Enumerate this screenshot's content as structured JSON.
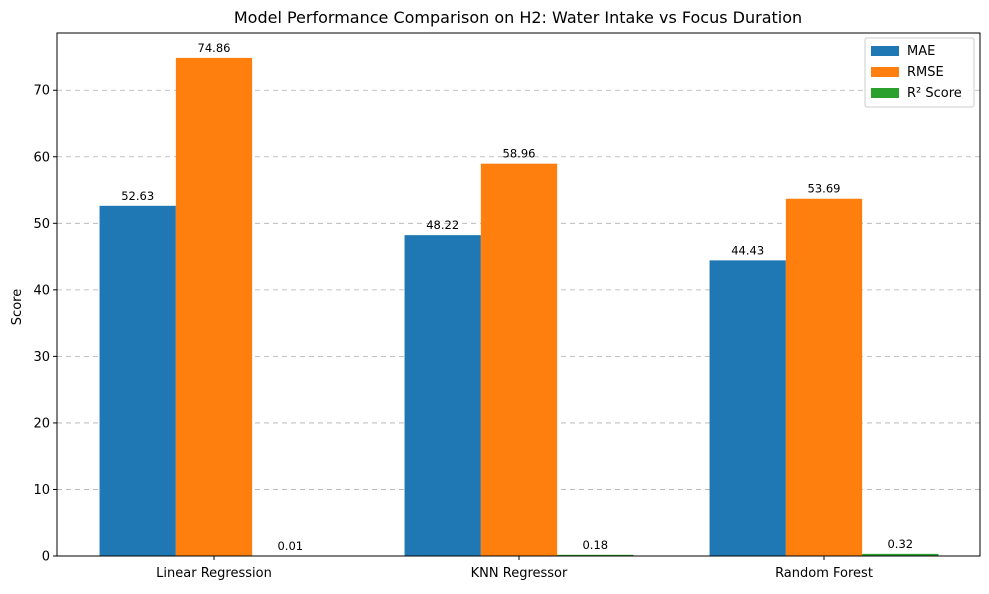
{
  "chart_data": {
    "type": "bar",
    "title": "Model Performance Comparison on H2: Water Intake vs Focus Duration",
    "xlabel": "",
    "ylabel": "Score",
    "categories": [
      "Linear Regression",
      "KNN Regressor",
      "Random Forest"
    ],
    "series": [
      {
        "name": "MAE",
        "values": [
          52.63,
          48.22,
          44.43
        ],
        "labels": [
          "52.63",
          "48.22",
          "44.43"
        ],
        "color": "#1f77b4"
      },
      {
        "name": "RMSE",
        "values": [
          74.86,
          58.96,
          53.69
        ],
        "labels": [
          "74.86",
          "58.96",
          "53.69"
        ],
        "color": "#ff7f0e"
      },
      {
        "name": "R² Score",
        "values": [
          0.01,
          0.18,
          0.32
        ],
        "labels": [
          "0.01",
          "0.18",
          "0.32"
        ],
        "color": "#2ca02c"
      }
    ],
    "ylim": [
      0,
      78.6
    ],
    "yticks": [
      0,
      10,
      20,
      30,
      40,
      50,
      60,
      70
    ],
    "ytick_labels": [
      "0",
      "10",
      "20",
      "30",
      "40",
      "50",
      "60",
      "70"
    ],
    "grid": "y-dashed",
    "legend_position": "top-right"
  }
}
